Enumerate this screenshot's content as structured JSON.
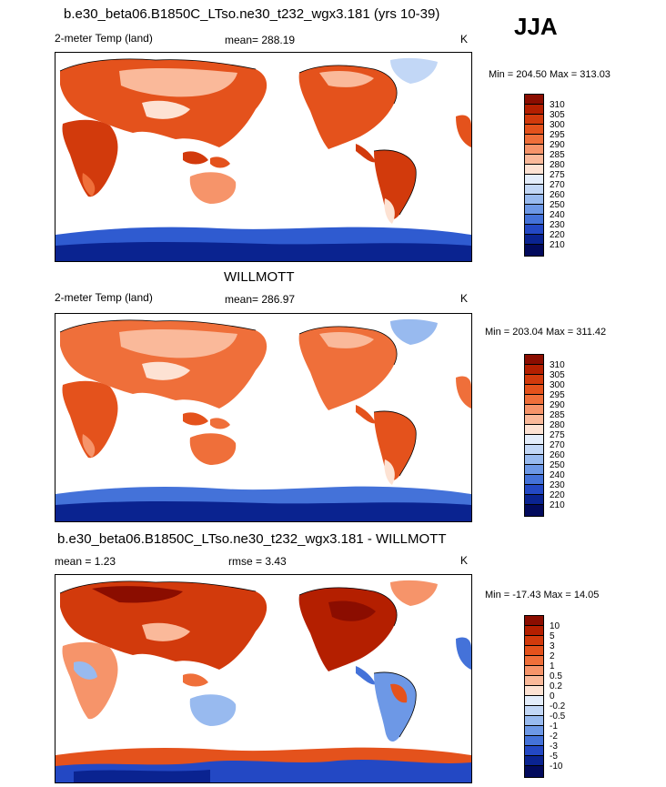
{
  "season": "JJA",
  "panels": [
    {
      "title": "b.e30_beta06.B1850C_LTso.ne30_t232_wgx3.181 (yrs 10-39)",
      "left_label": "2-meter Temp (land)",
      "center_label": "mean= 288.19",
      "unit": "K",
      "minmax": "Min = 204.50 Max = 313.03",
      "levels": [
        "310",
        "305",
        "300",
        "295",
        "290",
        "285",
        "280",
        "275",
        "270",
        "260",
        "250",
        "240",
        "230",
        "220",
        "210"
      ],
      "colors": [
        "#8b0d00",
        "#b41f00",
        "#d23a0c",
        "#e4521c",
        "#ef6f3a",
        "#f6946a",
        "#fab99a",
        "#fde2d3",
        "#e3edfb",
        "#c2d7f6",
        "#98baef",
        "#6d98e6",
        "#4472d9",
        "#2348c4",
        "#0a2390",
        "#020a5c"
      ]
    },
    {
      "title": "WILLMOTT",
      "left_label": "2-meter Temp (land)",
      "center_label": "mean= 286.97",
      "unit": "K",
      "minmax": "Min = 203.04 Max = 311.42",
      "levels": [
        "310",
        "305",
        "300",
        "295",
        "290",
        "285",
        "280",
        "275",
        "270",
        "260",
        "250",
        "240",
        "230",
        "220",
        "210"
      ],
      "colors": [
        "#8b0d00",
        "#b41f00",
        "#d23a0c",
        "#e4521c",
        "#ef6f3a",
        "#f6946a",
        "#fab99a",
        "#fde2d3",
        "#e3edfb",
        "#c2d7f6",
        "#98baef",
        "#6d98e6",
        "#4472d9",
        "#2348c4",
        "#0a2390",
        "#020a5c"
      ]
    },
    {
      "title": "b.e30_beta06.B1850C_LTso.ne30_t232_wgx3.181 - WILLMOTT",
      "left_label": "mean =   1.23",
      "center_label": "rmse =   3.43",
      "unit": "K",
      "minmax": "Min = -17.43 Max =  14.05",
      "levels": [
        "10",
        "5",
        "3",
        "2",
        "1",
        "0.5",
        "0.2",
        "0",
        "-0.2",
        "-0.5",
        "-1",
        "-2",
        "-3",
        "-5",
        "-10"
      ],
      "colors": [
        "#8b0d00",
        "#b41f00",
        "#d23a0c",
        "#e4521c",
        "#ef6f3a",
        "#f6946a",
        "#fab99a",
        "#fde2d3",
        "#e3edfb",
        "#c2d7f6",
        "#98baef",
        "#6d98e6",
        "#4472d9",
        "#2348c4",
        "#0a2390",
        "#020a5c"
      ]
    }
  ]
}
